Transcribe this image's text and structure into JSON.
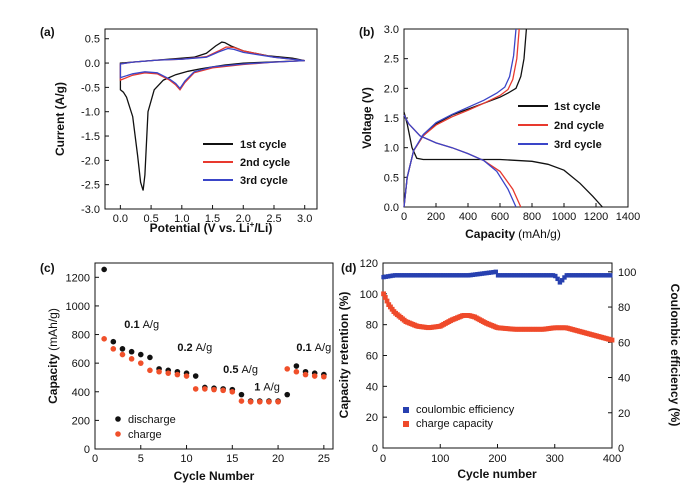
{
  "colors": {
    "cycle1": "#111111",
    "cycle2": "#e8392e",
    "cycle3": "#3a45c8",
    "discharge": "#111111",
    "charge": "#f0502a",
    "efficiency": "#2740b0",
    "retention": "#ef4a2b"
  },
  "chart_data": [
    {
      "id": "a",
      "label": "(a)",
      "type": "line",
      "xlabel": "Potential (V vs. Li",
      "xlabel_sup": "+",
      "xlabel_tail": "/Li)",
      "ylabel": "Current (A/g)",
      "xlim": [
        -0.25,
        3.2
      ],
      "ylim": [
        -3.0,
        0.7
      ],
      "xticks": [
        "0.0",
        "0.5",
        "1.0",
        "1.5",
        "2.0",
        "2.5",
        "3.0"
      ],
      "yticks": [
        "0.5",
        "0.0",
        "-0.5",
        "-1.0",
        "-1.5",
        "-2.0",
        "-2.5",
        "-3.0"
      ],
      "legend": [
        "1st cycle",
        "2nd cycle",
        "3rd cycle"
      ],
      "series": [
        {
          "name": "1st cycle",
          "x": [
            0.0,
            0.05,
            0.1,
            0.2,
            0.28,
            0.33,
            0.37,
            0.4,
            0.45,
            0.55,
            0.7,
            0.9,
            1.1,
            1.3,
            1.5,
            1.7,
            2.0,
            2.4,
            2.8,
            3.0,
            2.8,
            2.4,
            2.0,
            1.8,
            1.7,
            1.65,
            1.55,
            1.4,
            1.2,
            1.0,
            0.8,
            0.6,
            0.4,
            0.2,
            0.0
          ],
          "y": [
            -0.55,
            -0.6,
            -0.7,
            -1.1,
            -1.9,
            -2.45,
            -2.62,
            -2.3,
            -1.0,
            -0.55,
            -0.35,
            -0.24,
            -0.17,
            -0.12,
            -0.08,
            -0.04,
            0.0,
            0.02,
            0.04,
            0.05,
            0.1,
            0.15,
            0.25,
            0.35,
            0.42,
            0.43,
            0.35,
            0.2,
            0.12,
            0.1,
            0.08,
            0.06,
            0.04,
            0.02,
            0.0
          ]
        },
        {
          "name": "2nd cycle",
          "x": [
            0.0,
            0.2,
            0.4,
            0.6,
            0.8,
            0.9,
            0.97,
            1.05,
            1.2,
            1.5,
            2.0,
            2.5,
            3.0,
            2.5,
            2.0,
            1.85,
            1.72,
            1.6,
            1.4,
            1.0,
            0.6,
            0.2,
            0.0
          ],
          "y": [
            -0.35,
            -0.25,
            -0.2,
            -0.22,
            -0.35,
            -0.45,
            -0.55,
            -0.4,
            -0.2,
            -0.1,
            -0.03,
            0.02,
            0.05,
            0.12,
            0.25,
            0.32,
            0.33,
            0.25,
            0.13,
            0.08,
            0.06,
            0.02,
            -0.02
          ]
        },
        {
          "name": "3rd cycle",
          "x": [
            0.0,
            0.2,
            0.4,
            0.6,
            0.8,
            0.9,
            0.97,
            1.05,
            1.2,
            1.5,
            2.0,
            2.5,
            3.0,
            2.5,
            2.0,
            1.85,
            1.75,
            1.6,
            1.4,
            1.0,
            0.6,
            0.2,
            0.0
          ],
          "y": [
            -0.3,
            -0.22,
            -0.18,
            -0.2,
            -0.33,
            -0.42,
            -0.52,
            -0.37,
            -0.18,
            -0.08,
            -0.02,
            0.02,
            0.05,
            0.12,
            0.22,
            0.28,
            0.3,
            0.23,
            0.12,
            0.08,
            0.06,
            0.02,
            -0.02
          ]
        }
      ]
    },
    {
      "id": "b",
      "label": "(b)",
      "type": "line",
      "xlabel": "Capacity",
      "xlabel_unit": "(mAh/g)",
      "ylabel": "Voltage (V)",
      "xlim": [
        0,
        1400
      ],
      "ylim": [
        0,
        3.0
      ],
      "xticks": [
        "0",
        "200",
        "400",
        "600",
        "800",
        "1000",
        "1200",
        "1400"
      ],
      "yticks": [
        "3.0",
        "2.5",
        "2.0",
        "1.5",
        "1.0",
        "0.5",
        "0.0"
      ],
      "legend": [
        "1st cycle",
        "2nd cycle",
        "3rd cycle"
      ],
      "series": [
        {
          "name": "1st cycle discharge",
          "x": [
            0,
            20,
            50,
            80,
            120,
            300,
            600,
            800,
            900,
            1000,
            1100,
            1180,
            1240
          ],
          "y": [
            1.6,
            1.4,
            1.0,
            0.82,
            0.8,
            0.8,
            0.8,
            0.77,
            0.72,
            0.62,
            0.4,
            0.18,
            0.0
          ]
        },
        {
          "name": "1st cycle charge",
          "x": [
            0,
            20,
            60,
            120,
            200,
            300,
            400,
            500,
            600,
            650,
            700,
            730,
            750,
            765
          ],
          "y": [
            0.0,
            0.5,
            0.95,
            1.2,
            1.4,
            1.55,
            1.65,
            1.75,
            1.85,
            1.92,
            2.0,
            2.2,
            2.5,
            3.0
          ]
        },
        {
          "name": "2nd cycle discharge",
          "x": [
            0,
            30,
            100,
            200,
            300,
            400,
            500,
            600,
            680,
            730
          ],
          "y": [
            1.55,
            1.4,
            1.2,
            1.08,
            1.0,
            0.9,
            0.78,
            0.6,
            0.3,
            0.0
          ]
        },
        {
          "name": "2nd cycle charge",
          "x": [
            0,
            20,
            60,
            120,
            200,
            300,
            400,
            500,
            600,
            650,
            680,
            705,
            720
          ],
          "y": [
            0.0,
            0.5,
            0.95,
            1.2,
            1.38,
            1.52,
            1.63,
            1.75,
            1.88,
            1.98,
            2.15,
            2.5,
            3.0
          ]
        },
        {
          "name": "3rd cycle discharge",
          "x": [
            0,
            30,
            100,
            200,
            300,
            400,
            500,
            580,
            650,
            700
          ],
          "y": [
            1.55,
            1.4,
            1.2,
            1.08,
            1.0,
            0.9,
            0.78,
            0.6,
            0.3,
            0.0
          ]
        },
        {
          "name": "3rd cycle charge",
          "x": [
            0,
            20,
            60,
            120,
            200,
            300,
            400,
            500,
            580,
            630,
            660,
            685,
            700
          ],
          "y": [
            0.0,
            0.5,
            0.95,
            1.22,
            1.42,
            1.56,
            1.68,
            1.8,
            1.92,
            2.02,
            2.2,
            2.55,
            3.0
          ]
        }
      ]
    },
    {
      "id": "c",
      "label": "(c)",
      "type": "scatter",
      "xlabel": "Cycle Number",
      "ylabel": "Capacity",
      "ylabel_unit": "(mAh/g)",
      "xlim": [
        0,
        26
      ],
      "ylim": [
        0,
        1300
      ],
      "xticks": [
        "0",
        "5",
        "10",
        "15",
        "20",
        "25"
      ],
      "yticks": [
        "1200",
        "1000",
        "800",
        "600",
        "400",
        "200",
        "0"
      ],
      "legend": [
        "discharge",
        "charge"
      ],
      "annotations": [
        {
          "value": "0.1",
          "unit": "A/g",
          "x": 3.2,
          "y": 845
        },
        {
          "value": "0.2",
          "unit": "A/g",
          "x": 9.0,
          "y": 685
        },
        {
          "value": "0.5",
          "unit": "A/g",
          "x": 14.0,
          "y": 530
        },
        {
          "value": "1",
          "unit": "A/g",
          "x": 17.4,
          "y": 410
        },
        {
          "value": "0.1",
          "unit": "A/g",
          "x": 22.0,
          "y": 685
        }
      ],
      "series": [
        {
          "name": "discharge",
          "x": [
            1,
            2,
            3,
            4,
            5,
            6,
            7,
            8,
            9,
            10,
            11,
            12,
            13,
            14,
            15,
            16,
            17,
            18,
            19,
            20,
            21,
            22,
            23,
            24,
            25
          ],
          "y": [
            1255,
            750,
            700,
            680,
            660,
            640,
            560,
            550,
            540,
            530,
            510,
            430,
            425,
            420,
            415,
            380,
            335,
            335,
            335,
            335,
            380,
            580,
            540,
            530,
            520
          ]
        },
        {
          "name": "charge",
          "x": [
            1,
            2,
            3,
            4,
            5,
            6,
            7,
            8,
            9,
            10,
            11,
            12,
            13,
            14,
            15,
            16,
            17,
            18,
            19,
            20,
            21,
            22,
            23,
            24,
            25
          ],
          "y": [
            770,
            700,
            660,
            630,
            600,
            550,
            540,
            530,
            520,
            510,
            420,
            420,
            415,
            410,
            400,
            335,
            330,
            330,
            330,
            330,
            560,
            540,
            520,
            510,
            505
          ]
        }
      ]
    },
    {
      "id": "d",
      "label": "(d)",
      "type": "scatter",
      "xlabel": "Cycle number",
      "ylabel": "Capacity retention (%)",
      "y2label": "Coulombic efficiency (%)",
      "xlim": [
        0,
        400
      ],
      "ylim": [
        0,
        120
      ],
      "y2lim": [
        0,
        105
      ],
      "xticks": [
        "0",
        "100",
        "200",
        "300",
        "400"
      ],
      "yticks": [
        "120",
        "100",
        "80",
        "60",
        "40",
        "20",
        "0"
      ],
      "y2ticks": [
        "100",
        "80",
        "60",
        "40",
        "20",
        "0"
      ],
      "legend": [
        "coulombic efficiency",
        "charge capacity"
      ],
      "series": [
        {
          "name": "coulombic efficiency",
          "axis": "right",
          "x": [
            1,
            20,
            50,
            100,
            150,
            198,
            200,
            250,
            300,
            310,
            320,
            350,
            400
          ],
          "y": [
            97,
            98,
            98,
            98,
            98,
            100,
            98,
            98,
            98,
            94,
            98,
            98,
            98
          ]
        },
        {
          "name": "charge capacity",
          "axis": "left",
          "x": [
            1,
            10,
            20,
            40,
            60,
            80,
            100,
            120,
            140,
            150,
            160,
            180,
            200,
            230,
            260,
            280,
            300,
            320,
            340,
            360,
            380,
            400
          ],
          "y": [
            100,
            93,
            88,
            82,
            79,
            78,
            79,
            83,
            86,
            86,
            85,
            81,
            78,
            77,
            77,
            77,
            78,
            78,
            76,
            74,
            72,
            70
          ]
        }
      ]
    }
  ]
}
